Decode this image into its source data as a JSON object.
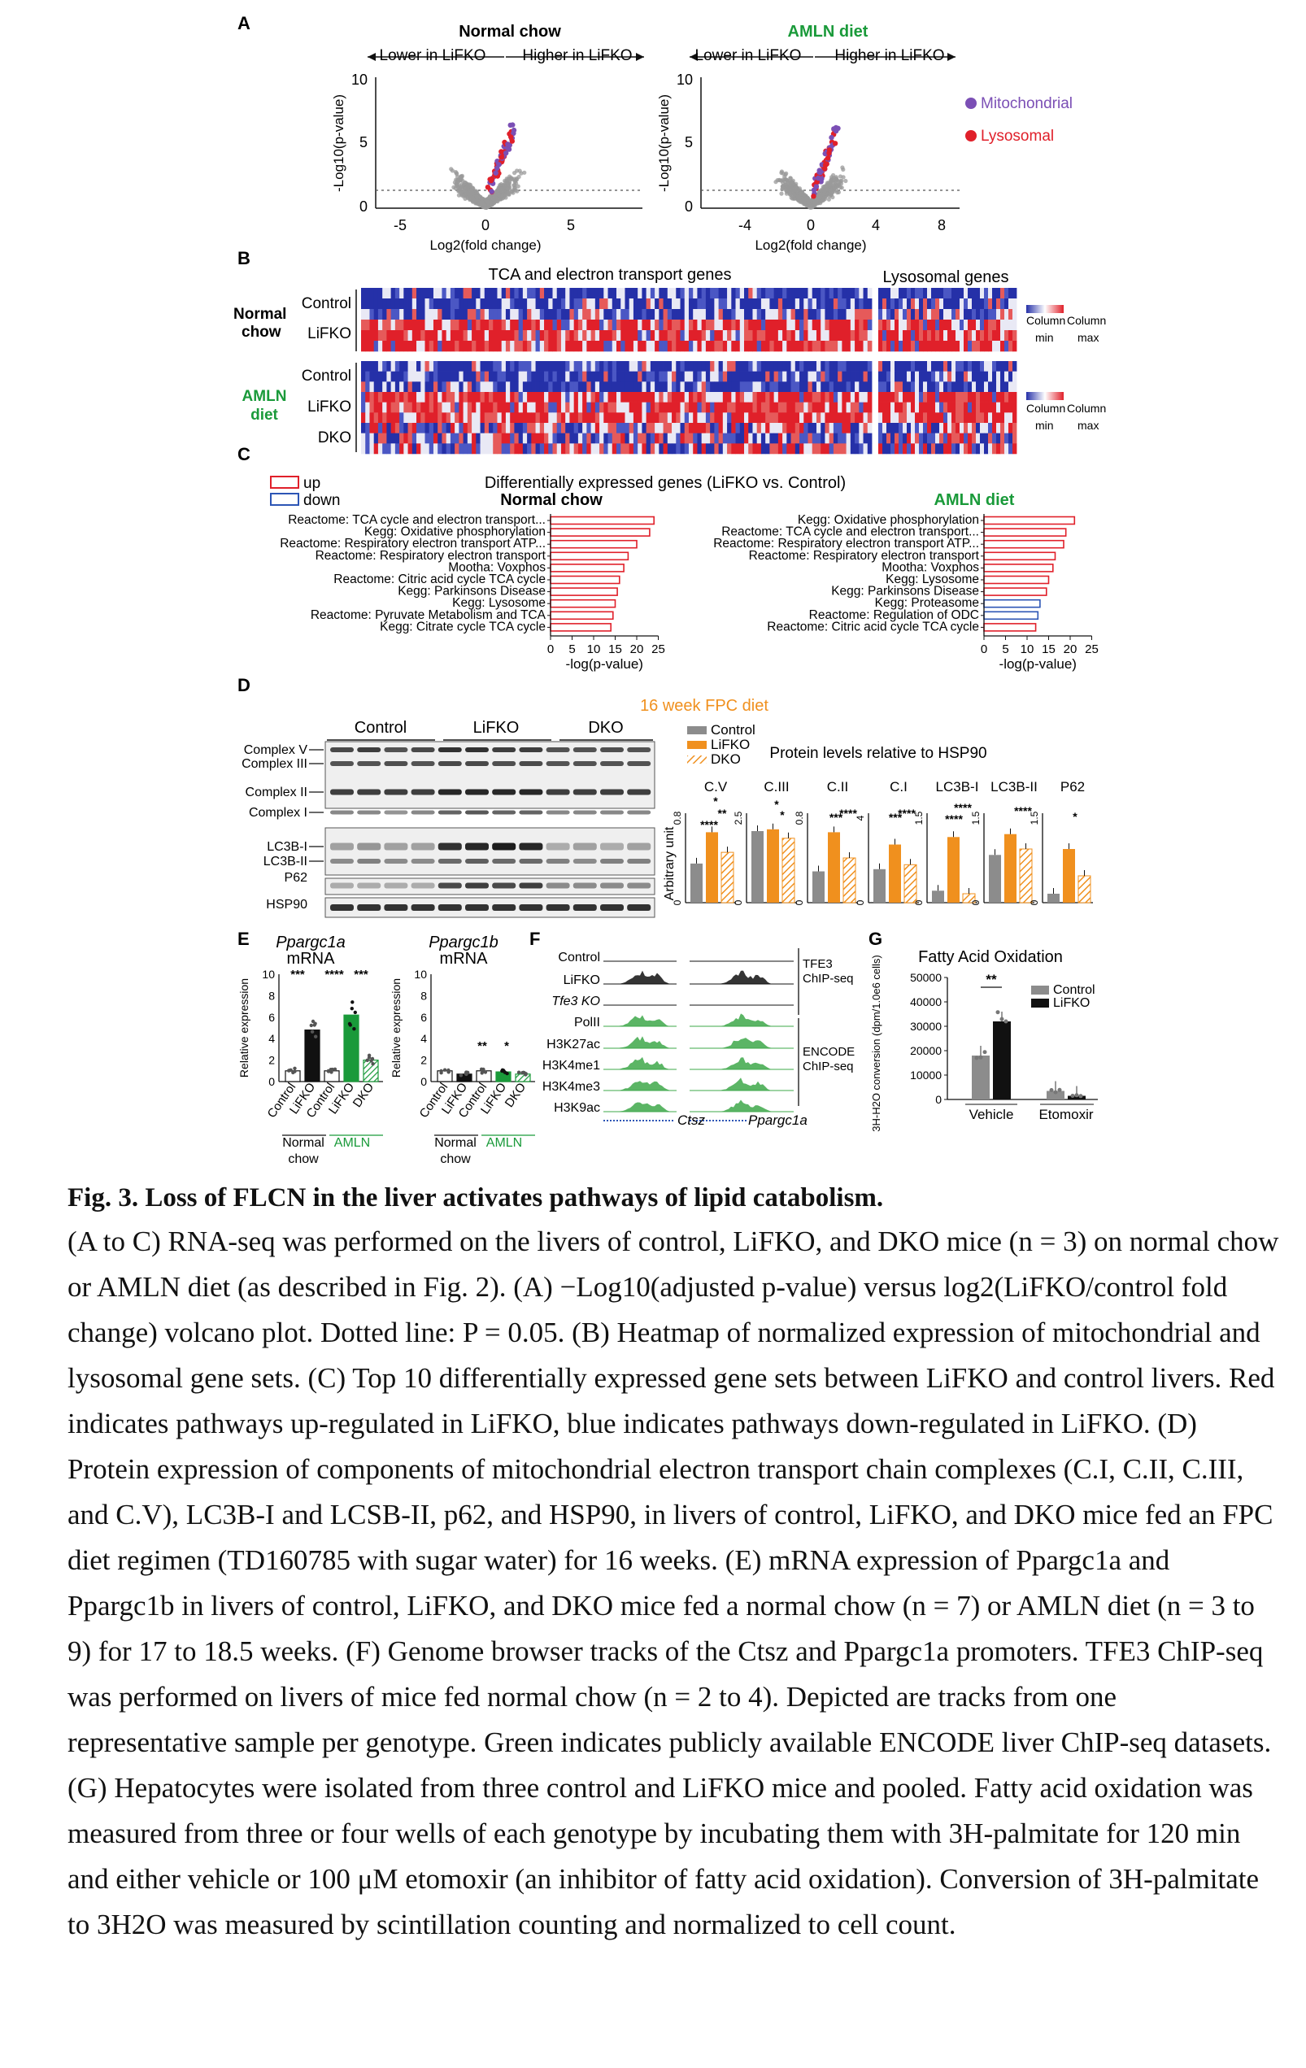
{
  "figure": {
    "panelA": {
      "letter": "A",
      "titles": [
        "Normal chow",
        "AMLN diet"
      ],
      "title_colors": [
        "#111111",
        "#1a9a3a"
      ],
      "arrow_lower": "Lower in LiFKO",
      "arrow_higher": "Higher in LiFKO",
      "ylabel": "-Log10(p-value)",
      "xlabel": "Log2(fold change)",
      "ylim": [
        0,
        10
      ],
      "yticks": [
        "0",
        "5",
        "10"
      ],
      "left_xticks": [
        "-5",
        "0",
        "5"
      ],
      "right_xticks": [
        "-4",
        "0",
        "4",
        "8"
      ],
      "legend": [
        "Mitochondrial",
        "Lysosomal"
      ],
      "legend_colors": [
        "#7b4fb5",
        "#e0202a"
      ],
      "dotted_line_p": 0.05
    },
    "panelB": {
      "letter": "B",
      "title_tca": "TCA and electron transport genes",
      "title_lyso": "Lysosomal genes",
      "group1": [
        "Normal",
        "chow"
      ],
      "group2": [
        "AMLN",
        "diet"
      ],
      "rows_nc": [
        "Control",
        "LiFKO"
      ],
      "rows_amln": [
        "Control",
        "LiFKO",
        "DKO"
      ],
      "scale": [
        "Column",
        "Column",
        "min",
        "max"
      ]
    },
    "panelC": {
      "letter": "C",
      "legend": [
        "up",
        "down"
      ],
      "title": "Differentially expressed genes (LiFKO vs. Control)",
      "sub_left": "Normal chow",
      "sub_right": "AMLN diet",
      "xlabel": "-log(p-value)",
      "xticks": [
        "0",
        "5",
        "10",
        "15",
        "20",
        "25"
      ],
      "left_terms": [
        "Reactome: TCA cycle and electron transport...",
        "Kegg: Oxidative phosphorylation",
        "Reactome: Respiratory electron transport ATP...",
        "Reactome: Respiratory electron transport",
        "Mootha: Voxphos",
        "Reactome: Citric acid cycle TCA cycle",
        "Kegg: Parkinsons Disease",
        "Kegg: Lysosome",
        "Reactome: Pyruvate Metabolism and TCA",
        "Kegg: Citrate cycle TCA cycle"
      ],
      "left_values": [
        24,
        23,
        20,
        18,
        17,
        16,
        15.5,
        15,
        14.5,
        14
      ],
      "left_dirs": [
        "up",
        "up",
        "up",
        "up",
        "up",
        "up",
        "up",
        "up",
        "up",
        "up"
      ],
      "right_terms": [
        "Kegg: Oxidative phosphorylation",
        "Reactome: TCA cycle and electron transport...",
        "Reactome: Respiratory electron transport ATP...",
        "Reactome: Respiratory electron transport",
        "Mootha: Voxphos",
        "Kegg: Lysosome",
        "Kegg: Parkinsons Disease",
        "Kegg: Proteasome",
        "Reactome: Regulation of ODC",
        "Reactome: Citric acid cycle TCA cycle"
      ],
      "right_values": [
        21,
        19,
        18.5,
        16.5,
        16,
        15,
        14.5,
        13,
        12.5,
        12
      ],
      "right_dirs": [
        "up",
        "up",
        "up",
        "up",
        "up",
        "up",
        "up",
        "down",
        "down",
        "up"
      ]
    },
    "panelD": {
      "letter": "D",
      "diet_label": "16 week FPC diet",
      "groups": [
        "Control",
        "LiFKO",
        "DKO"
      ],
      "blot_labels": [
        "Complex V",
        "Complex III",
        "Complex II",
        "Complex I",
        "LC3B-I",
        "LC3B-II",
        "P62",
        "HSP90"
      ],
      "legend": [
        "Control",
        "LiFKO",
        "DKO"
      ],
      "chart_title": "Protein levels relative to HSP90",
      "ylabel": "Arbitrary unit",
      "sig_marks": [
        "*",
        "**",
        "****",
        "*",
        "*",
        "***",
        "****",
        "***",
        "****",
        "****",
        "****",
        "****",
        "*"
      ]
    },
    "panelE": {
      "letter": "E",
      "gene1": "Ppargc1a",
      "gene2": "Ppargc1b",
      "mrna": "mRNA",
      "ylabel": "Relative expression",
      "yticks": [
        "0",
        "2",
        "4",
        "6",
        "8",
        "10"
      ],
      "xcats": [
        "Control",
        "LiFKO",
        "Control",
        "LiFKO",
        "DKO"
      ],
      "groups": [
        "Normal",
        "chow",
        "AMLN"
      ],
      "sig": [
        "***",
        "****",
        "***",
        "**",
        "*"
      ]
    },
    "panelF": {
      "letter": "F",
      "tracks": [
        "Control",
        "LiFKO",
        "Tfe3 KO",
        "PolII",
        "H3K27ac",
        "H3K4me1",
        "H3K4me3",
        "H3K9ac"
      ],
      "group1": [
        "TFE3",
        "ChIP-seq"
      ],
      "group2": [
        "ENCODE",
        "ChIP-seq"
      ],
      "genes": [
        "Ctsz",
        "Ppargc1a"
      ]
    },
    "panelG": {
      "letter": "G",
      "title": "Fatty Acid Oxidation",
      "ylabel": "3H-H2O conversion (dpm/1.0e6 cells)",
      "yticks": [
        "0",
        "10000",
        "20000",
        "30000",
        "40000",
        "50000"
      ],
      "legend": [
        "Control",
        "LiFKO"
      ],
      "sig": "**",
      "xcats": [
        "Vehicle",
        "Etomoxir"
      ]
    }
  },
  "chart_data": [
    {
      "type": "bar",
      "title": "Normal chow",
      "xlabel": "-log(p-value)",
      "categories": [
        "Reactome: TCA cycle and electron transport...",
        "Kegg: Oxidative phosphorylation",
        "Reactome: Respiratory electron transport ATP...",
        "Reactome: Respiratory electron transport",
        "Mootha: Voxphos",
        "Reactome: Citric acid cycle TCA cycle",
        "Kegg: Parkinsons Disease",
        "Kegg: Lysosome",
        "Reactome: Pyruvate Metabolism and TCA",
        "Kegg: Citrate cycle TCA cycle"
      ],
      "values": [
        24,
        23,
        20,
        18,
        17,
        16,
        15.5,
        15,
        14.5,
        14
      ],
      "xlim": [
        0,
        25
      ]
    },
    {
      "type": "bar",
      "title": "AMLN diet",
      "xlabel": "-log(p-value)",
      "categories": [
        "Kegg: Oxidative phosphorylation",
        "Reactome: TCA cycle and electron transport...",
        "Reactome: Respiratory electron transport ATP...",
        "Reactome: Respiratory electron transport",
        "Mootha: Voxphos",
        "Kegg: Lysosome",
        "Kegg: Parkinsons Disease",
        "Kegg: Proteasome",
        "Reactome: Regulation of ODC",
        "Reactome: Citric acid cycle TCA cycle"
      ],
      "values": [
        21,
        19,
        18.5,
        16.5,
        16,
        15,
        14.5,
        13,
        12.5,
        12
      ],
      "xlim": [
        0,
        25
      ]
    },
    {
      "type": "bar",
      "title": "Protein levels relative to HSP90",
      "ylabel": "Arbitrary unit",
      "categories": [
        "C.V",
        "C.III",
        "C.II",
        "C.I",
        "LC3B-I",
        "LC3B-II",
        "P62"
      ],
      "ylims": [
        0.8,
        2.5,
        0.8,
        4.0,
        1.5,
        1.5,
        1.5
      ],
      "series": [
        {
          "name": "Control",
          "values": [
            0.35,
            2.0,
            0.28,
            1.5,
            0.2,
            0.8,
            0.15
          ]
        },
        {
          "name": "LiFKO",
          "values": [
            0.63,
            2.05,
            0.63,
            2.6,
            1.1,
            1.15,
            0.9
          ]
        },
        {
          "name": "DKO",
          "values": [
            0.45,
            1.8,
            0.4,
            1.7,
            0.15,
            0.9,
            0.45
          ]
        }
      ]
    },
    {
      "type": "bar",
      "title": "Ppargc1a mRNA",
      "ylabel": "Relative expression",
      "categories": [
        "Control",
        "LiFKO",
        "Control",
        "LiFKO",
        "DKO"
      ],
      "values": [
        1.0,
        4.8,
        1.0,
        6.2,
        2.0
      ],
      "ylim": [
        0,
        10
      ]
    },
    {
      "type": "bar",
      "title": "Ppargc1b mRNA",
      "ylabel": "Relative expression",
      "categories": [
        "Control",
        "LiFKO",
        "Control",
        "LiFKO",
        "DKO"
      ],
      "values": [
        1.0,
        0.7,
        1.0,
        0.9,
        0.7
      ],
      "ylim": [
        0,
        10
      ]
    },
    {
      "type": "bar",
      "title": "Fatty Acid Oxidation",
      "ylabel": "3H-H2O conversion (dpm/1.0e6 cells)",
      "categories": [
        "Vehicle",
        "Etomoxir"
      ],
      "ylim": [
        0,
        50000
      ],
      "series": [
        {
          "name": "Control",
          "values": [
            18000,
            3500
          ]
        },
        {
          "name": "LiFKO",
          "values": [
            32000,
            1500
          ]
        }
      ]
    }
  ],
  "caption": {
    "title": "Fig. 3. Loss of FLCN in the liver activates pathways of lipid catabolism.",
    "body": "(A to C) RNA-seq was performed on the livers of control, LiFKO, and DKO mice (n = 3) on normal chow or AMLN diet (as described in Fig. 2). (A) −Log10(adjusted p-value) versus log2(LiFKO/control fold change) volcano plot. Dotted line: P = 0.05. (B) Heatmap of normalized expression of mitochondrial and lysosomal gene sets. (C) Top 10 differentially expressed gene sets between LiFKO and control livers. Red indicates pathways up-regulated in LiFKO, blue indicates pathways down-regulated in LiFKO. (D) Protein expression of components of mitochondrial electron transport chain complexes (C.I, C.II, C.III, and C.V), LC3B-I and LCSB-II, p62, and HSP90, in livers of control, LiFKO, and DKO mice fed an FPC diet regimen (TD160785 with sugar water) for 16 weeks. (E) mRNA expression of Ppargc1a and Ppargc1b in livers of control, LiFKO, and DKO mice fed a normal chow (n = 7) or AMLN diet (n = 3 to 9) for 17 to 18.5 weeks. (F) Genome browser tracks of the Ctsz and Ppargc1a promoters. TFE3 ChIP-seq was performed on livers of mice fed normal chow (n = 2 to 4). Depicted are tracks from one representative sample per genotype. Green indicates publicly available ENCODE liver ChIP-seq datasets. (G) Hepatocytes were isolated from three control and LiFKO mice and pooled. Fatty acid oxidation was measured from three or four wells of each genotype by incubating them with 3H-palmitate for 120 min and either vehicle or 100 μM etomoxir (an inhibitor of fatty acid oxidation). Conversion of 3H-palmitate to 3H2O was measured by scintillation counting and normalized to cell count."
  }
}
